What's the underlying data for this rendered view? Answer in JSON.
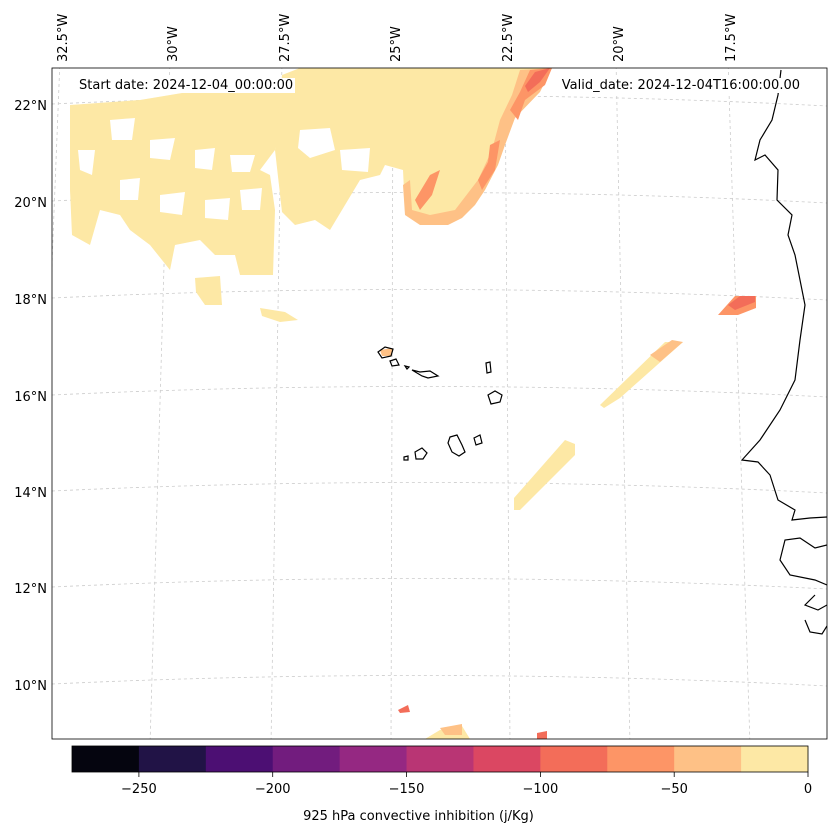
{
  "header": {
    "start_date": "Start date: 2024-12-04_00:00:00",
    "valid_date": "Valid_date: 2024-12-04T16:00:00.00"
  },
  "map": {
    "lon_labels": [
      "32.5°W",
      "30°W",
      "27.5°W",
      "25°W",
      "22.5°W",
      "20°W",
      "17.5°W"
    ],
    "lat_labels": [
      "22°N",
      "20°N",
      "18°N",
      "16°N",
      "14°N",
      "12°N",
      "10°N"
    ],
    "gridlines": "dashed-light-grey",
    "coastline_color": "#000000"
  },
  "colorbar": {
    "title": "925 hPa convective inhibition (j/Kg)",
    "tick_labels": [
      "−250",
      "−200",
      "−150",
      "−100",
      "−50",
      "0"
    ],
    "colors": [
      "#05050f",
      "#211346",
      "#4c0f73",
      "#721c7e",
      "#952882",
      "#b93574",
      "#db4762",
      "#f36d59",
      "#fd9566",
      "#fec186",
      "#fde8a5"
    ],
    "range": [
      -275,
      0
    ],
    "levels": [
      -275,
      -250,
      -225,
      -200,
      -175,
      -150,
      -125,
      -100,
      -75,
      -50,
      -25,
      0
    ]
  }
}
